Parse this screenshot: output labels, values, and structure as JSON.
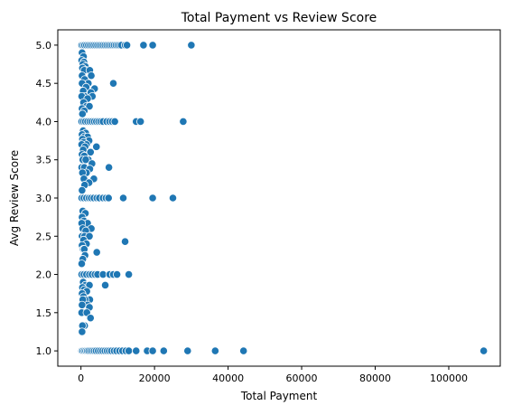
{
  "chart_data": {
    "type": "scatter",
    "title": "Total Payment vs Review Score",
    "xlabel": "Total Payment",
    "ylabel": "Avg Review Score",
    "xlim": [
      -6300,
      114000
    ],
    "ylim": [
      0.8,
      5.2
    ],
    "xticks": [
      0,
      20000,
      40000,
      60000,
      80000,
      100000
    ],
    "xtick_labels": [
      "0",
      "20000",
      "40000",
      "60000",
      "80000",
      "100000"
    ],
    "yticks": [
      1.0,
      1.5,
      2.0,
      2.5,
      3.0,
      3.5,
      4.0,
      4.5,
      5.0
    ],
    "ytick_labels": [
      "1.0",
      "1.5",
      "2.0",
      "2.5",
      "3.0",
      "3.5",
      "4.0",
      "4.5",
      "5.0"
    ],
    "grid": false,
    "marker_color": "#1f77b4",
    "marker_edge_color": "#ffffff",
    "series": [
      {
        "points": [
          [
            200,
            5.0
          ],
          [
            600,
            5.0
          ],
          [
            1000,
            5.0
          ],
          [
            1500,
            5.0
          ],
          [
            2000,
            5.0
          ],
          [
            2500,
            5.0
          ],
          [
            3000,
            5.0
          ],
          [
            3500,
            5.0
          ],
          [
            4000,
            5.0
          ],
          [
            4500,
            5.0
          ],
          [
            5000,
            5.0
          ],
          [
            5500,
            5.0
          ],
          [
            6000,
            5.0
          ],
          [
            6500,
            5.0
          ],
          [
            7000,
            5.0
          ],
          [
            7500,
            5.0
          ],
          [
            8000,
            5.0
          ],
          [
            8500,
            5.0
          ],
          [
            9000,
            5.0
          ],
          [
            9500,
            5.0
          ],
          [
            10000,
            5.0
          ],
          [
            10500,
            5.0
          ],
          [
            11000,
            5.0
          ],
          [
            12000,
            5.0
          ],
          [
            12500,
            5.0
          ],
          [
            17000,
            5.0
          ],
          [
            19500,
            5.0
          ],
          [
            30000,
            5.0
          ],
          [
            300,
            4.9
          ],
          [
            700,
            4.85
          ],
          [
            200,
            4.8
          ],
          [
            800,
            4.78
          ],
          [
            500,
            4.75
          ],
          [
            1200,
            4.72
          ],
          [
            400,
            4.7
          ],
          [
            1500,
            4.67
          ],
          [
            900,
            4.67
          ],
          [
            2400,
            4.67
          ],
          [
            2800,
            4.6
          ],
          [
            300,
            4.6
          ],
          [
            1000,
            4.55
          ],
          [
            2000,
            4.5
          ],
          [
            8800,
            4.5
          ],
          [
            300,
            4.5
          ],
          [
            1400,
            4.45
          ],
          [
            3700,
            4.43
          ],
          [
            600,
            4.4
          ],
          [
            2700,
            4.38
          ],
          [
            1000,
            4.33
          ],
          [
            200,
            4.33
          ],
          [
            3100,
            4.33
          ],
          [
            1800,
            4.3
          ],
          [
            700,
            4.25
          ],
          [
            1500,
            4.2
          ],
          [
            2300,
            4.2
          ],
          [
            300,
            4.17
          ],
          [
            900,
            4.14
          ],
          [
            400,
            4.1
          ],
          [
            200,
            4.0
          ],
          [
            700,
            4.0
          ],
          [
            1200,
            4.0
          ],
          [
            1800,
            4.0
          ],
          [
            2400,
            4.0
          ],
          [
            3000,
            4.0
          ],
          [
            3600,
            4.0
          ],
          [
            4200,
            4.0
          ],
          [
            4800,
            4.0
          ],
          [
            5400,
            4.0
          ],
          [
            6000,
            4.0
          ],
          [
            7000,
            4.0
          ],
          [
            7800,
            4.0
          ],
          [
            8500,
            4.0
          ],
          [
            9200,
            4.0
          ],
          [
            15000,
            4.0
          ],
          [
            16200,
            4.0
          ],
          [
            27800,
            4.0
          ],
          [
            600,
            3.88
          ],
          [
            1300,
            3.85
          ],
          [
            300,
            3.83
          ],
          [
            900,
            3.8
          ],
          [
            1800,
            3.8
          ],
          [
            400,
            3.77
          ],
          [
            2200,
            3.75
          ],
          [
            700,
            3.73
          ],
          [
            1500,
            3.7
          ],
          [
            200,
            3.7
          ],
          [
            4200,
            3.67
          ],
          [
            1100,
            3.67
          ],
          [
            600,
            3.63
          ],
          [
            2600,
            3.6
          ],
          [
            300,
            3.57
          ],
          [
            900,
            3.55
          ],
          [
            2000,
            3.5
          ],
          [
            500,
            3.5
          ],
          [
            1300,
            3.5
          ],
          [
            3000,
            3.45
          ],
          [
            200,
            3.4
          ],
          [
            900,
            3.4
          ],
          [
            7600,
            3.4
          ],
          [
            2400,
            3.38
          ],
          [
            1500,
            3.33
          ],
          [
            400,
            3.33
          ],
          [
            3500,
            3.25
          ],
          [
            800,
            3.25
          ],
          [
            2200,
            3.2
          ],
          [
            1000,
            3.17
          ],
          [
            300,
            3.1
          ],
          [
            200,
            3.0
          ],
          [
            800,
            3.0
          ],
          [
            1500,
            3.0
          ],
          [
            2200,
            3.0
          ],
          [
            2800,
            3.0
          ],
          [
            3500,
            3.0
          ],
          [
            4300,
            3.0
          ],
          [
            5000,
            3.0
          ],
          [
            6000,
            3.0
          ],
          [
            6800,
            3.0
          ],
          [
            7500,
            3.0
          ],
          [
            11500,
            3.0
          ],
          [
            19500,
            3.0
          ],
          [
            25000,
            3.0
          ],
          [
            500,
            2.83
          ],
          [
            1200,
            2.8
          ],
          [
            300,
            2.75
          ],
          [
            800,
            2.7
          ],
          [
            1800,
            2.67
          ],
          [
            200,
            2.67
          ],
          [
            2800,
            2.6
          ],
          [
            500,
            2.6
          ],
          [
            1300,
            2.57
          ],
          [
            300,
            2.5
          ],
          [
            1000,
            2.5
          ],
          [
            2300,
            2.5
          ],
          [
            700,
            2.45
          ],
          [
            12000,
            2.43
          ],
          [
            1500,
            2.4
          ],
          [
            300,
            2.38
          ],
          [
            600,
            2.33
          ],
          [
            900,
            2.33
          ],
          [
            4300,
            2.29
          ],
          [
            1100,
            2.25
          ],
          [
            500,
            2.2
          ],
          [
            200,
            2.14
          ],
          [
            200,
            2.0
          ],
          [
            800,
            2.0
          ],
          [
            1500,
            2.0
          ],
          [
            2300,
            2.0
          ],
          [
            3000,
            2.0
          ],
          [
            3800,
            2.0
          ],
          [
            4500,
            2.0
          ],
          [
            6000,
            2.0
          ],
          [
            7800,
            2.0
          ],
          [
            8800,
            2.0
          ],
          [
            9800,
            2.0
          ],
          [
            13000,
            2.0
          ],
          [
            600,
            1.9
          ],
          [
            1200,
            1.86
          ],
          [
            6600,
            1.86
          ],
          [
            2300,
            1.86
          ],
          [
            400,
            1.83
          ],
          [
            900,
            1.8
          ],
          [
            1600,
            1.78
          ],
          [
            300,
            1.75
          ],
          [
            700,
            1.71
          ],
          [
            2400,
            1.67
          ],
          [
            1100,
            1.67
          ],
          [
            500,
            1.67
          ],
          [
            1800,
            1.6
          ],
          [
            300,
            1.6
          ],
          [
            2300,
            1.57
          ],
          [
            800,
            1.5
          ],
          [
            200,
            1.5
          ],
          [
            1600,
            1.5
          ],
          [
            2600,
            1.43
          ],
          [
            1000,
            1.33
          ],
          [
            400,
            1.33
          ],
          [
            300,
            1.25
          ],
          [
            200,
            1.0
          ],
          [
            500,
            1.0
          ],
          [
            900,
            1.0
          ],
          [
            1300,
            1.0
          ],
          [
            1700,
            1.0
          ],
          [
            2100,
            1.0
          ],
          [
            2600,
            1.0
          ],
          [
            3100,
            1.0
          ],
          [
            3600,
            1.0
          ],
          [
            4100,
            1.0
          ],
          [
            4700,
            1.0
          ],
          [
            5300,
            1.0
          ],
          [
            5900,
            1.0
          ],
          [
            6500,
            1.0
          ],
          [
            7100,
            1.0
          ],
          [
            7700,
            1.0
          ],
          [
            8300,
            1.0
          ],
          [
            9000,
            1.0
          ],
          [
            9700,
            1.0
          ],
          [
            10500,
            1.0
          ],
          [
            11300,
            1.0
          ],
          [
            12200,
            1.0
          ],
          [
            13000,
            1.0
          ],
          [
            15000,
            1.0
          ],
          [
            18000,
            1.0
          ],
          [
            19500,
            1.0
          ],
          [
            22500,
            1.0
          ],
          [
            29000,
            1.0
          ],
          [
            36500,
            1.0
          ],
          [
            44200,
            1.0
          ],
          [
            109500,
            1.0
          ]
        ]
      }
    ]
  }
}
